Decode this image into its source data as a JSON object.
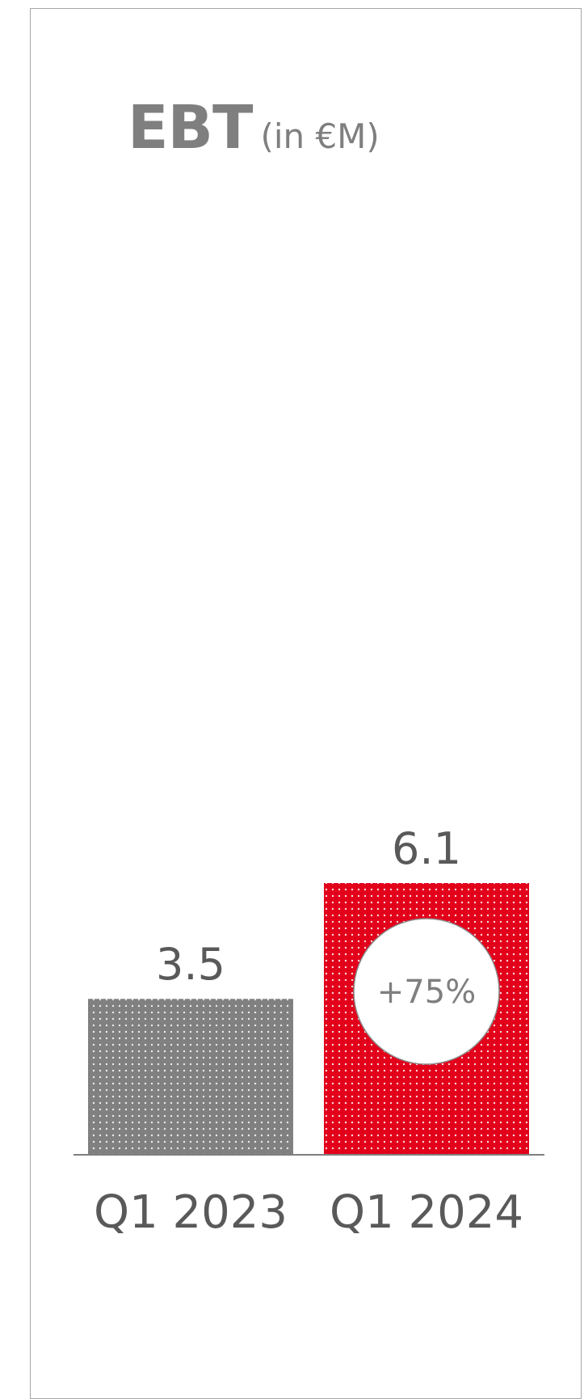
{
  "chart_data": {
    "type": "bar",
    "title": "EBT",
    "subtitle": "(in €M)",
    "categories": [
      "Q1 2023",
      "Q1 2024"
    ],
    "values": [
      3.5,
      6.1
    ],
    "value_labels": [
      "3.5",
      "6.1"
    ],
    "annotation": "+75%",
    "colors": [
      "#808080",
      "#e2001a"
    ],
    "ylim": [
      0,
      6.1
    ],
    "grid": false,
    "legend": "none"
  }
}
